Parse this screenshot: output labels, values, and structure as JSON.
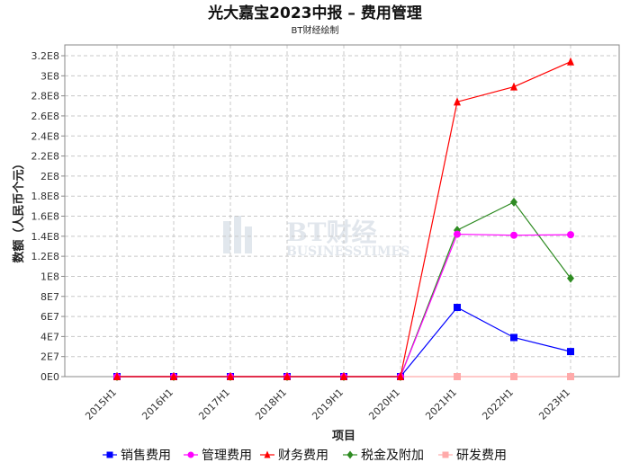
{
  "chart_data": {
    "type": "line",
    "title": "光大嘉宝2023中报 – 费用管理",
    "subtitle": "BT财经绘制",
    "xlabel": "项目",
    "ylabel": "数额（人民币个元）",
    "categories": [
      "2015H1",
      "2016H1",
      "2017H1",
      "2018H1",
      "2019H1",
      "2020H1",
      "2021H1",
      "2022H1",
      "2023H1"
    ],
    "ylim": [
      0,
      320000000
    ],
    "yticks": [
      "0E0",
      "2E7",
      "4E7",
      "6E7",
      "8E7",
      "1E8",
      "1.2E8",
      "1.4E8",
      "1.6E8",
      "1.8E8",
      "2E8",
      "2.2E8",
      "2.4E8",
      "2.6E8",
      "2.8E8",
      "3E8",
      "3.2E8"
    ],
    "grid": true,
    "legend_position": "bottom",
    "series": [
      {
        "name": "销售费用",
        "color": "#0000ff",
        "marker": "square",
        "values": [
          0,
          0,
          0,
          0,
          0,
          0,
          69000000,
          39000000,
          25000000
        ]
      },
      {
        "name": "管理费用",
        "color": "#ff00ff",
        "marker": "circle",
        "values": [
          0,
          0,
          0,
          0,
          0,
          0,
          142000000,
          141000000,
          141500000
        ]
      },
      {
        "name": "财务费用",
        "color": "#ff0000",
        "marker": "triangle",
        "values": [
          0,
          0,
          0,
          0,
          0,
          0,
          274000000,
          289000000,
          314000000
        ]
      },
      {
        "name": "税金及附加",
        "color": "#2e8b22",
        "marker": "diamond",
        "values": [
          0,
          0,
          0,
          0,
          0,
          0,
          146000000,
          174000000,
          98000000
        ]
      },
      {
        "name": "研发费用",
        "color": "#ffaaaa",
        "marker": "square",
        "values": [
          0,
          0,
          0,
          0,
          0,
          0,
          0,
          0,
          0
        ]
      }
    ]
  },
  "watermark": {
    "logo_text": "BT财经",
    "sub_text": "BUSINESSTIMES"
  }
}
